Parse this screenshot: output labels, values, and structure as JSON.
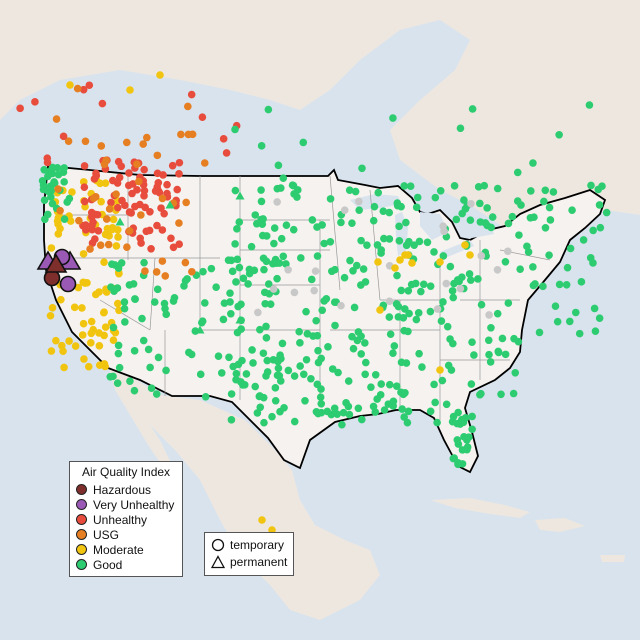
{
  "legend": {
    "title": "Air Quality Index",
    "categories": [
      {
        "label": "Hazardous",
        "color": "#7e2f2b"
      },
      {
        "label": "Very Unhealthy",
        "color": "#9b59b6"
      },
      {
        "label": "Unhealthy",
        "color": "#e74c3c"
      },
      {
        "label": "USG",
        "color": "#e67e22"
      },
      {
        "label": "Moderate",
        "color": "#f1c40f"
      },
      {
        "label": "Good",
        "color": "#2ecc71"
      }
    ]
  },
  "site_legend": {
    "temporary": "temporary",
    "permanent": "permanent"
  },
  "colors": {
    "water": "#d8e3ee",
    "land": "#ede7e0",
    "us_land": "#f5f2ef",
    "border": "#000000",
    "state_line": "#9a9a9a",
    "no_data": "#c8c8c8"
  }
}
